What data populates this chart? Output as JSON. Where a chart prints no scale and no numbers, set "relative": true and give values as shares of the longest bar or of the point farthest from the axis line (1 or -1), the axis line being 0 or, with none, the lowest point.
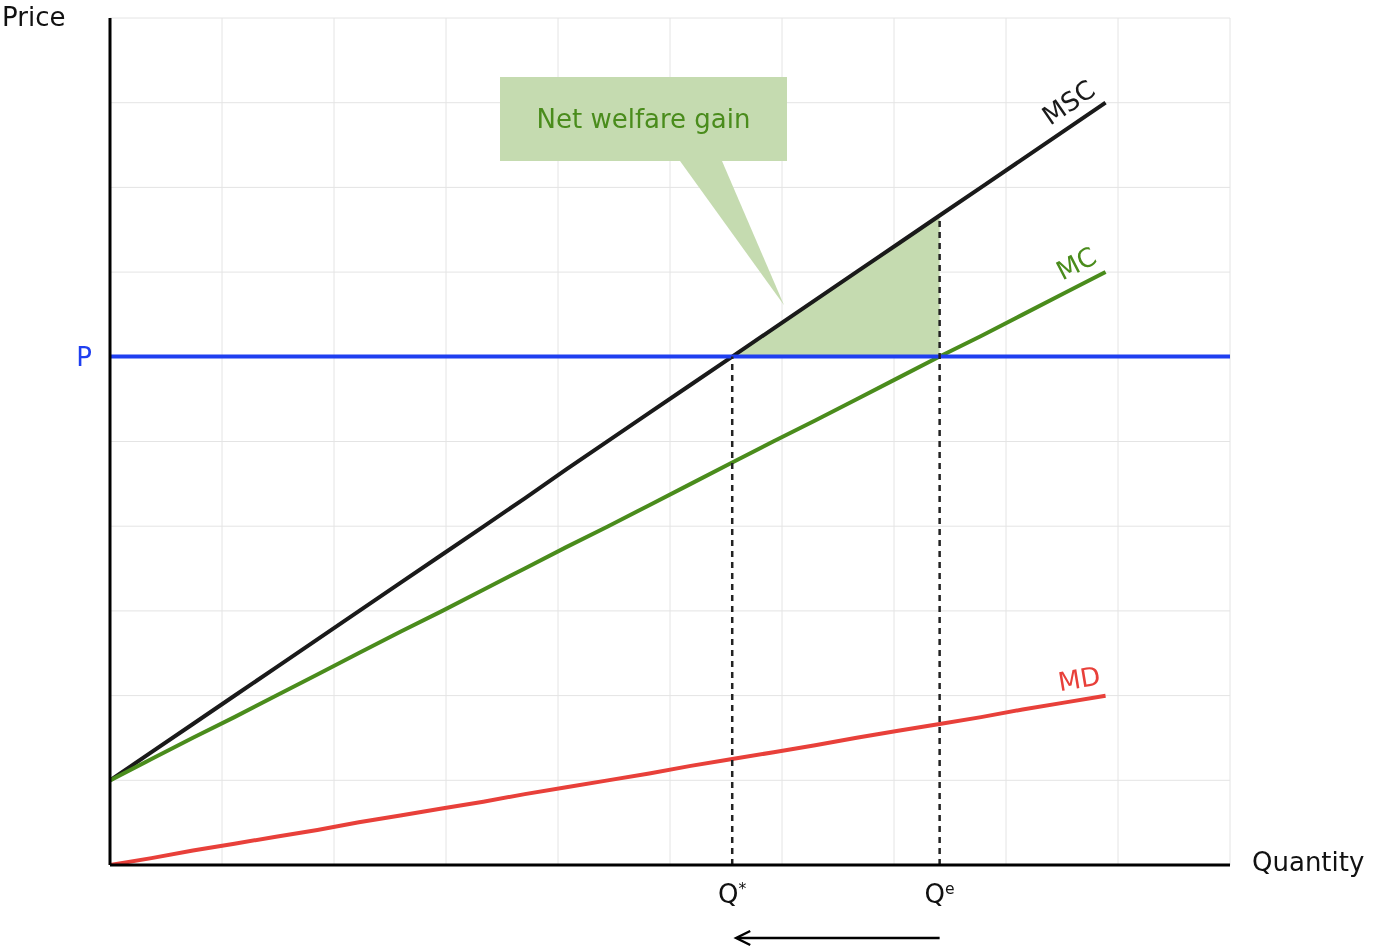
{
  "chart_data": {
    "type": "line",
    "relative": true,
    "xlabel": "Quantity",
    "ylabel": "Price",
    "categories": [
      null,
      null,
      null,
      null,
      null,
      null,
      null,
      null,
      null,
      null,
      null,
      null,
      null,
      null,
      null,
      "Q$^{*}$",
      null,
      null,
      null,
      null,
      "Q$^{e}$",
      null,
      null,
      null,
      null,
      null,
      null,
      null
    ],
    "grid": true,
    "series": [
      {
        "type": "area",
        "color": "#c5dbb0",
        "values": [
          null,
          null,
          null,
          null,
          null,
          null,
          null,
          null,
          null,
          null,
          null,
          null,
          null,
          null,
          null,
          0.667,
          0.704,
          0.741,
          0.778,
          0.815,
          0.852,
          null,
          null,
          null,
          null,
          null,
          null,
          null
        ]
      },
      {
        "name": "MSC",
        "color": "#1a1a1a",
        "values": [
          0.111,
          0.148,
          0.185,
          0.222,
          0.259,
          0.296,
          0.333,
          0.37,
          0.407,
          0.444,
          0.481,
          0.519,
          0.556,
          0.593,
          0.63,
          0.667,
          0.704,
          0.741,
          0.778,
          0.815,
          0.852,
          0.889,
          0.926,
          0.963,
          1,
          null,
          null,
          null
        ]
      },
      {
        "name": "MC",
        "color": "#4a8c1c",
        "values": [
          0.111,
          0.139,
          0.167,
          0.194,
          0.222,
          0.25,
          0.278,
          0.306,
          0.333,
          0.361,
          0.389,
          0.417,
          0.444,
          0.472,
          0.5,
          0.528,
          0.556,
          0.583,
          0.611,
          0.639,
          0.667,
          0.694,
          0.722,
          0.75,
          0.778,
          null,
          null,
          null
        ]
      },
      {
        "name": "MD",
        "color": "#e8403a",
        "values": [
          0,
          0.009,
          0.019,
          0.028,
          0.037,
          0.046,
          0.056,
          0.065,
          0.074,
          0.083,
          0.093,
          0.102,
          0.111,
          0.12,
          0.13,
          0.139,
          0.148,
          0.157,
          0.167,
          0.176,
          0.185,
          0.194,
          0.204,
          0.213,
          0.222,
          null,
          null,
          null
        ]
      }
    ],
    "ref_lines": [
      {
        "axis": "y",
        "value": 0.667,
        "label": "P",
        "color": "#1f3ff0"
      },
      {
        "axis": "x",
        "value": "Q$^{*}$",
        "color": "#222222",
        "line_style": "dashed"
      },
      {
        "axis": "x",
        "value": "Q$^{e}$",
        "color": "#222222",
        "line_style": "dashed"
      }
    ],
    "annotations": [
      "Net welfare gain"
    ]
  }
}
